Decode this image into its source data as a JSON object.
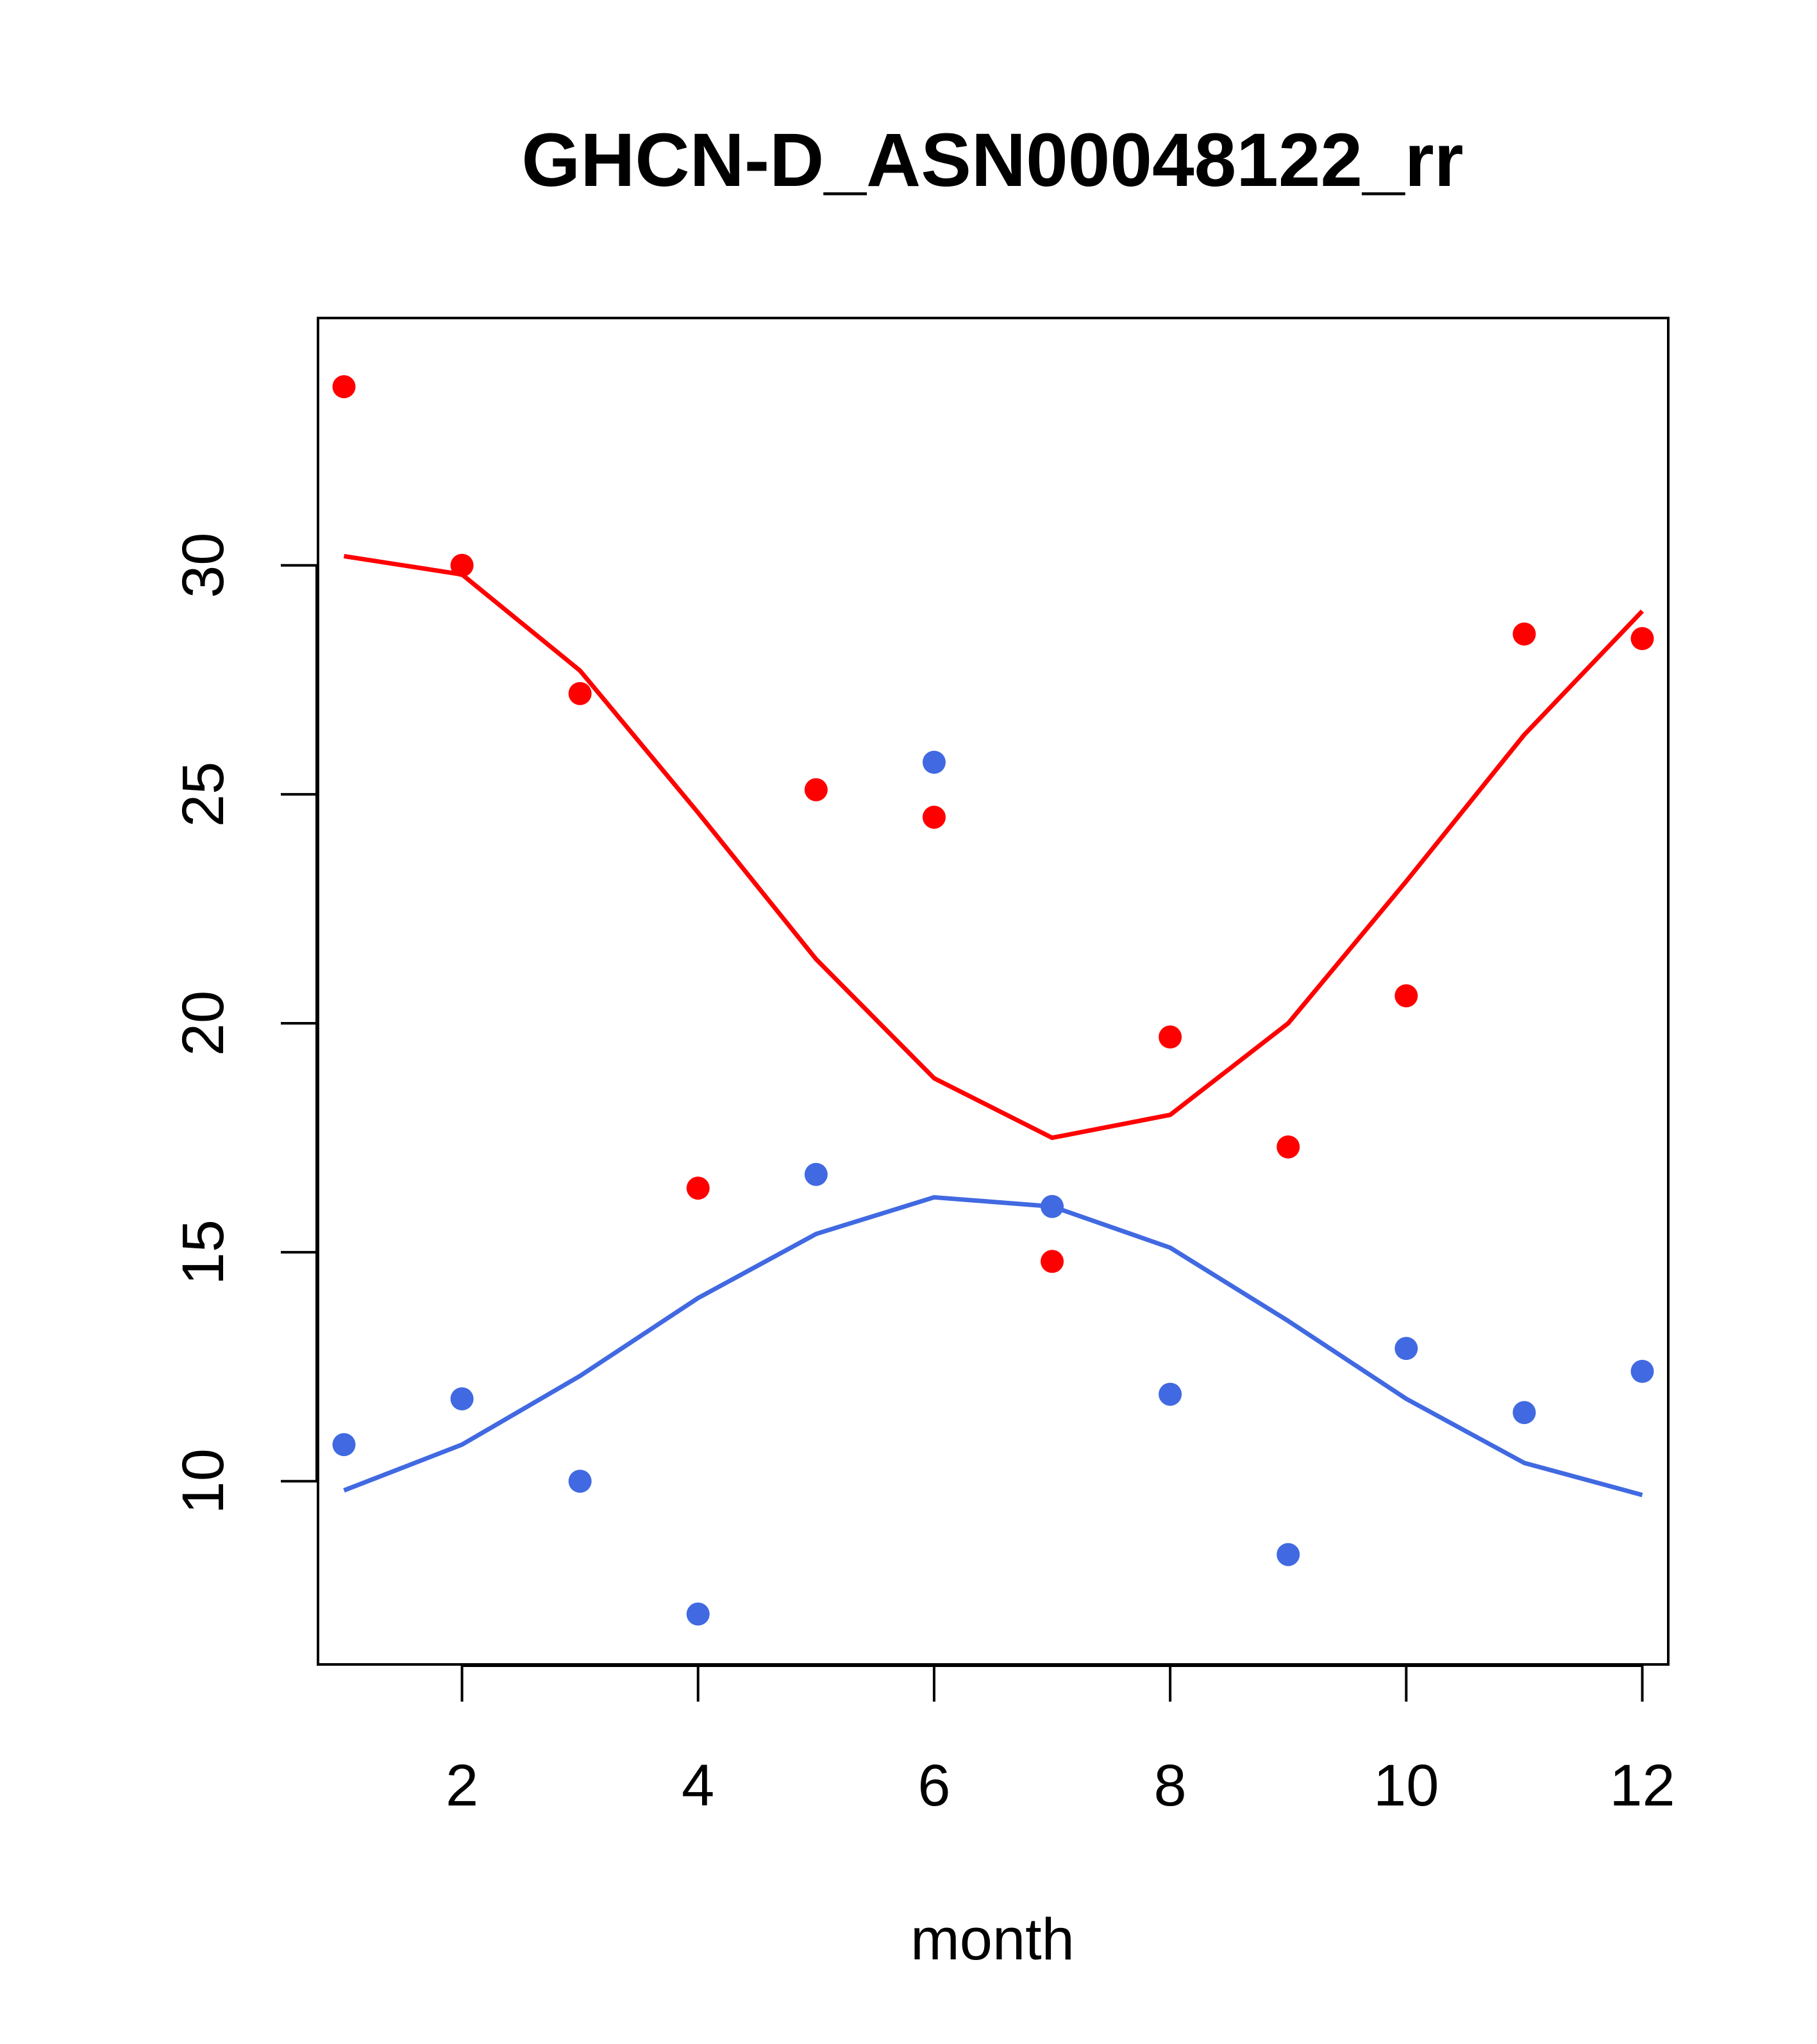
{
  "chart_data": {
    "type": "scatter",
    "title": "GHCN-D_ASN00048122_rr",
    "xlabel": "month",
    "ylabel": "",
    "xlim": [
      0.78,
      12.22
    ],
    "ylim": [
      6.0,
      35.4
    ],
    "x_ticks": [
      2,
      4,
      6,
      8,
      10,
      12
    ],
    "y_ticks": [
      10,
      15,
      20,
      25,
      30
    ],
    "grid": false,
    "series": [
      {
        "name": "red",
        "color": "#ff0000",
        "x": [
          1,
          2,
          3,
          4,
          5,
          6,
          7,
          8,
          9,
          10,
          11,
          12
        ],
        "points": [
          33.9,
          30.0,
          27.2,
          16.4,
          25.1,
          24.5,
          14.8,
          19.7,
          17.3,
          20.6,
          28.5,
          28.4
        ],
        "fit": [
          30.2,
          29.8,
          27.7,
          24.6,
          21.4,
          18.8,
          17.5,
          18.0,
          20.0,
          23.1,
          26.3,
          29.0
        ]
      },
      {
        "name": "blue",
        "color": "#4169e1",
        "x": [
          1,
          2,
          3,
          4,
          5,
          6,
          7,
          8,
          9,
          10,
          11,
          12
        ],
        "points": [
          10.8,
          11.8,
          10.0,
          7.1,
          16.7,
          25.7,
          16.0,
          11.9,
          8.4,
          12.9,
          11.5,
          12.4
        ],
        "fit": [
          9.8,
          10.8,
          12.3,
          14.0,
          15.4,
          16.2,
          16.0,
          15.1,
          13.5,
          11.8,
          10.4,
          9.7
        ]
      }
    ]
  }
}
